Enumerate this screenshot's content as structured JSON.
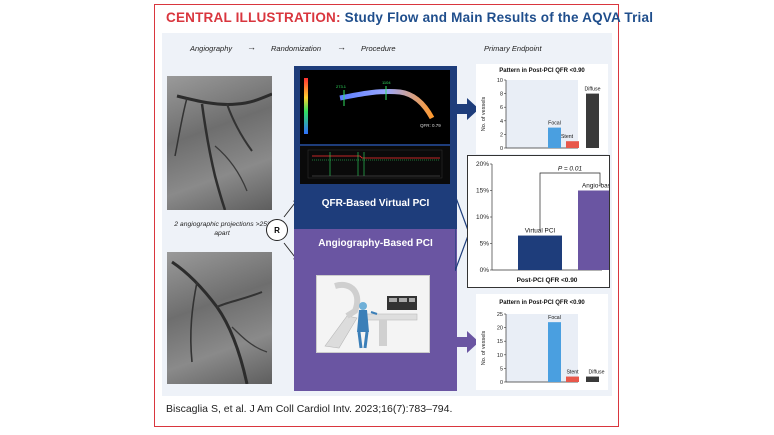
{
  "title": {
    "prefix": "CENTRAL ILLUSTRATION:",
    "main": "Study Flow and Main Results of the AQVA Trial"
  },
  "flow": {
    "step1": "Angiography",
    "step2": "Randomization",
    "step3": "Procedure",
    "endpoint": "Primary Endpoint",
    "arrow": "→"
  },
  "projections_text": "2 angiographic projections >25° apart",
  "randomization_symbol": "R",
  "arms": {
    "qfr": "QFR-Based Virtual PCI",
    "angio": "Angiography-Based PCI"
  },
  "qfr_screen": {
    "value_label": "QFR: 0.79",
    "marker1": "273.1",
    "marker2": "1104"
  },
  "colors": {
    "frame_red": "#d9363e",
    "title_blue": "#1f4e8c",
    "qfr_blue": "#1e3d7b",
    "angio_purple": "#6a55a2",
    "focal_blue": "#4a9fe0",
    "stent_red": "#e8574a",
    "diffuse_dark": "#3a3a3a",
    "virtual_blue": "#1e3d7b",
    "angio_bar_purple": "#6a55a2"
  },
  "chart_data": [
    {
      "type": "bar",
      "title": "Pattern in Post-PCI QFR <0.90",
      "categories": [
        "Focal",
        "Stent",
        "Diffuse"
      ],
      "values": [
        3,
        1,
        8
      ],
      "ylabel": "No. of vessels",
      "xlabel": "",
      "ylim": [
        0,
        10
      ],
      "yticks": [
        "0",
        "2",
        "4",
        "6",
        "8",
        "10"
      ]
    },
    {
      "type": "bar",
      "title": "",
      "categories": [
        "Virtual PCI",
        "Angio-based"
      ],
      "values": [
        6.5,
        15
      ],
      "ylabel": "",
      "xlabel": "Post-PCI QFR <0.90",
      "ylim": [
        0,
        20
      ],
      "yticks": [
        "0%",
        "5%",
        "10%",
        "15%",
        "20%"
      ],
      "annotation": "P = 0.01"
    },
    {
      "type": "bar",
      "title": "Pattern in Post-PCI QFR <0.90",
      "categories": [
        "Focal",
        "Stent",
        "Diffuse"
      ],
      "values": [
        22,
        2,
        2
      ],
      "ylabel": "No. of vessels",
      "xlabel": "",
      "ylim": [
        0,
        25
      ],
      "yticks": [
        "0",
        "5",
        "10",
        "15",
        "20",
        "25"
      ]
    }
  ],
  "citation": "Biscaglia S, et al. J Am Coll Cardiol Intv. 2023;16(7):783–794."
}
